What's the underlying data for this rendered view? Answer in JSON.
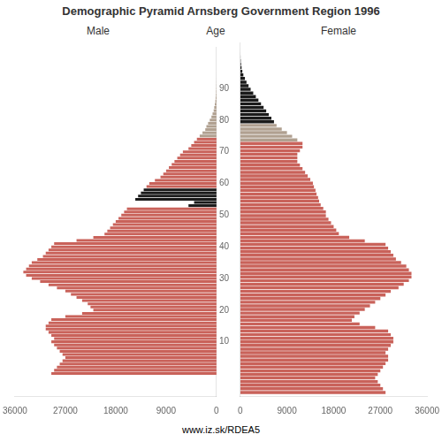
{
  "chart_data": [
    {
      "type": "bar",
      "orientation": "horizontal",
      "title": "Demographic Pyramid Arnsberg Government Region 1996",
      "ylabel": "Age",
      "annotations": [
        "www.iz.sk/RDEA5"
      ],
      "categories": [
        0,
        1,
        2,
        3,
        4,
        5,
        6,
        7,
        8,
        9,
        10,
        11,
        12,
        13,
        14,
        15,
        16,
        17,
        18,
        19,
        20,
        21,
        22,
        23,
        24,
        25,
        26,
        27,
        28,
        29,
        30,
        31,
        32,
        33,
        34,
        35,
        36,
        37,
        38,
        39,
        40,
        41,
        42,
        43,
        44,
        45,
        46,
        47,
        48,
        49,
        50,
        51,
        52,
        53,
        54,
        55,
        56,
        57,
        58,
        59,
        60,
        61,
        62,
        63,
        64,
        65,
        66,
        67,
        68,
        69,
        70,
        71,
        72,
        73,
        74,
        75,
        76,
        77,
        78,
        79,
        80,
        81,
        82,
        83,
        84,
        85,
        86,
        87,
        88,
        89,
        90,
        91,
        92,
        93,
        94,
        95
      ],
      "ylim": [
        -1,
        97
      ],
      "yticks": [
        10,
        20,
        30,
        40,
        50,
        60,
        70,
        80,
        90
      ],
      "xlim": [
        36000,
        0
      ],
      "xticks": [
        36000,
        27000,
        18000,
        9000,
        0
      ],
      "grid": false,
      "series": [
        {
          "name": "Male",
          "values": [
            29500,
            29000,
            28500,
            28000,
            27500,
            27000,
            27500,
            28000,
            28500,
            29000,
            29500,
            29000,
            29500,
            30000,
            30500,
            30500,
            30000,
            29500,
            27000,
            24000,
            22000,
            22500,
            23000,
            24000,
            25000,
            26000,
            27000,
            28500,
            30000,
            31500,
            33000,
            34000,
            34500,
            34000,
            33500,
            33000,
            32000,
            31000,
            30500,
            30000,
            29500,
            29000,
            25000,
            22000,
            20000,
            19500,
            19000,
            18500,
            18000,
            17500,
            17000,
            16500,
            16000,
            5000,
            4000,
            14500,
            14000,
            13500,
            13000,
            12500,
            12000,
            11000,
            10000,
            9500,
            9000,
            8500,
            8000,
            7500,
            7000,
            6500,
            6000,
            5000,
            4500,
            4000,
            3500,
            3000,
            2500,
            2000,
            1800,
            1500,
            1200,
            900,
            700,
            500,
            400,
            300,
            200,
            150,
            100,
            70,
            50,
            30,
            20,
            10,
            5,
            3
          ],
          "colors": [
            "#c9625a",
            "#c9625a",
            "#c9625a",
            "#c9625a",
            "#c9625a",
            "#c9625a",
            "#c9625a",
            "#c9625a",
            "#c9625a",
            "#c9625a",
            "#c9625a",
            "#c9625a",
            "#c9625a",
            "#c9625a",
            "#c9625a",
            "#c9625a",
            "#c9625a",
            "#c9625a",
            "#c9625a",
            "#c9625a",
            "#c9625a",
            "#c9625a",
            "#c9625a",
            "#c9625a",
            "#c9625a",
            "#c9625a",
            "#c9625a",
            "#c9625a",
            "#c9625a",
            "#c9625a",
            "#c9625a",
            "#c9625a",
            "#c9625a",
            "#c9625a",
            "#c9625a",
            "#c9625a",
            "#c9625a",
            "#c9625a",
            "#c9625a",
            "#c9625a",
            "#c9625a",
            "#c9625a",
            "#c9625a",
            "#c9625a",
            "#c9625a",
            "#c9625a",
            "#c9625a",
            "#c9625a",
            "#c9625a",
            "#c9625a",
            "#c9625a",
            "#c9625a",
            "#c9625a",
            "#1a1a1a",
            "#1a1a1a",
            "#1a1a1a",
            "#1a1a1a",
            "#1a1a1a",
            "#1a1a1a",
            "#c9625a",
            "#c9625a",
            "#c9625a",
            "#c9625a",
            "#c9625a",
            "#c9625a",
            "#c9625a",
            "#c9625a",
            "#c9625a",
            "#c9625a",
            "#c9625a",
            "#c9625a",
            "#c9625a",
            "#c9625a",
            "#c9625a",
            "#c9625a",
            "#b0a090",
            "#b0a090",
            "#b0a090",
            "#b0a090",
            "#b0a090",
            "#b0a090",
            "#b0a090",
            "#b0a090",
            "#b0a090",
            "#b0a090",
            "#b0a090",
            "#b0a090",
            "#b0a090",
            "#b0a090",
            "#b0a090",
            "#b0a090",
            "#b0a090",
            "#b0a090",
            "#b0a090",
            "#b0a090",
            "#b0a090"
          ]
        }
      ]
    },
    {
      "type": "bar",
      "orientation": "horizontal",
      "categories": [
        0,
        1,
        2,
        3,
        4,
        5,
        6,
        7,
        8,
        9,
        10,
        11,
        12,
        13,
        14,
        15,
        16,
        17,
        18,
        19,
        20,
        21,
        22,
        23,
        24,
        25,
        26,
        27,
        28,
        29,
        30,
        31,
        32,
        33,
        34,
        35,
        36,
        37,
        38,
        39,
        40,
        41,
        42,
        43,
        44,
        45,
        46,
        47,
        48,
        49,
        50,
        51,
        52,
        53,
        54,
        55,
        56,
        57,
        58,
        59,
        60,
        61,
        62,
        63,
        64,
        65,
        66,
        67,
        68,
        69,
        70,
        71,
        72,
        73,
        74,
        75,
        76,
        77,
        78,
        79,
        80,
        81,
        82,
        83,
        84,
        85,
        86,
        87,
        88,
        89,
        90,
        91,
        92,
        93,
        94,
        95
      ],
      "ylim": [
        -1,
        97
      ],
      "xlim": [
        0,
        36000
      ],
      "xticks": [
        0,
        9000,
        18000,
        27000,
        36000
      ],
      "grid": false,
      "tick_labels": "x",
      "series": [
        {
          "name": "Female",
          "values": [
            28000,
            27500,
            27000,
            26500,
            26000,
            26500,
            27000,
            27500,
            28000,
            28500,
            28500,
            28000,
            28500,
            29000,
            29500,
            29500,
            29000,
            28500,
            26000,
            23000,
            21500,
            22000,
            23000,
            24000,
            25000,
            26000,
            27000,
            28000,
            29000,
            30500,
            31500,
            32500,
            33000,
            33000,
            32500,
            32000,
            31000,
            30000,
            29500,
            29000,
            28500,
            28000,
            24000,
            21000,
            19000,
            18500,
            18000,
            17500,
            17000,
            16500,
            16500,
            16000,
            15500,
            15200,
            15000,
            14700,
            14500,
            14200,
            14000,
            13500,
            13000,
            12500,
            12000,
            11500,
            11000,
            11000,
            11000,
            11500,
            12000,
            12000,
            11000,
            10000,
            9000,
            8000,
            7000,
            6500,
            6000,
            5500,
            5000,
            4500,
            4000,
            3500,
            3000,
            2500,
            2000,
            1600,
            1200,
            900,
            600,
            400,
            250,
            150,
            90,
            50,
            20,
            10
          ],
          "colors": [
            "#c9625a",
            "#c9625a",
            "#c9625a",
            "#c9625a",
            "#c9625a",
            "#c9625a",
            "#c9625a",
            "#c9625a",
            "#c9625a",
            "#c9625a",
            "#c9625a",
            "#c9625a",
            "#c9625a",
            "#c9625a",
            "#c9625a",
            "#c9625a",
            "#c9625a",
            "#c9625a",
            "#c9625a",
            "#c9625a",
            "#c9625a",
            "#c9625a",
            "#c9625a",
            "#c9625a",
            "#c9625a",
            "#c9625a",
            "#c9625a",
            "#c9625a",
            "#c9625a",
            "#c9625a",
            "#c9625a",
            "#c9625a",
            "#c9625a",
            "#c9625a",
            "#c9625a",
            "#c9625a",
            "#c9625a",
            "#c9625a",
            "#c9625a",
            "#c9625a",
            "#c9625a",
            "#c9625a",
            "#c9625a",
            "#c9625a",
            "#c9625a",
            "#c9625a",
            "#c9625a",
            "#c9625a",
            "#c9625a",
            "#c9625a",
            "#c9625a",
            "#c9625a",
            "#c9625a",
            "#c9625a",
            "#c9625a",
            "#c9625a",
            "#c9625a",
            "#c9625a",
            "#c9625a",
            "#c9625a",
            "#c9625a",
            "#c9625a",
            "#c9625a",
            "#c9625a",
            "#c9625a",
            "#c9625a",
            "#c9625a",
            "#c9625a",
            "#c9625a",
            "#c9625a",
            "#b0a090",
            "#b0a090",
            "#b0a090",
            "#b0a090",
            "#b0a090",
            "#1a1a1a",
            "#1a1a1a",
            "#1a1a1a",
            "#1a1a1a",
            "#1a1a1a",
            "#1a1a1a",
            "#1a1a1a",
            "#1a1a1a",
            "#1a1a1a",
            "#1a1a1a",
            "#1a1a1a",
            "#1a1a1a",
            "#1a1a1a",
            "#1a1a1a",
            "#1a1a1a",
            "#1a1a1a",
            "#1a1a1a",
            "#1a1a1a",
            "#1a1a1a",
            "#1a1a1a",
            "#1a1a1a"
          ]
        }
      ]
    }
  ]
}
